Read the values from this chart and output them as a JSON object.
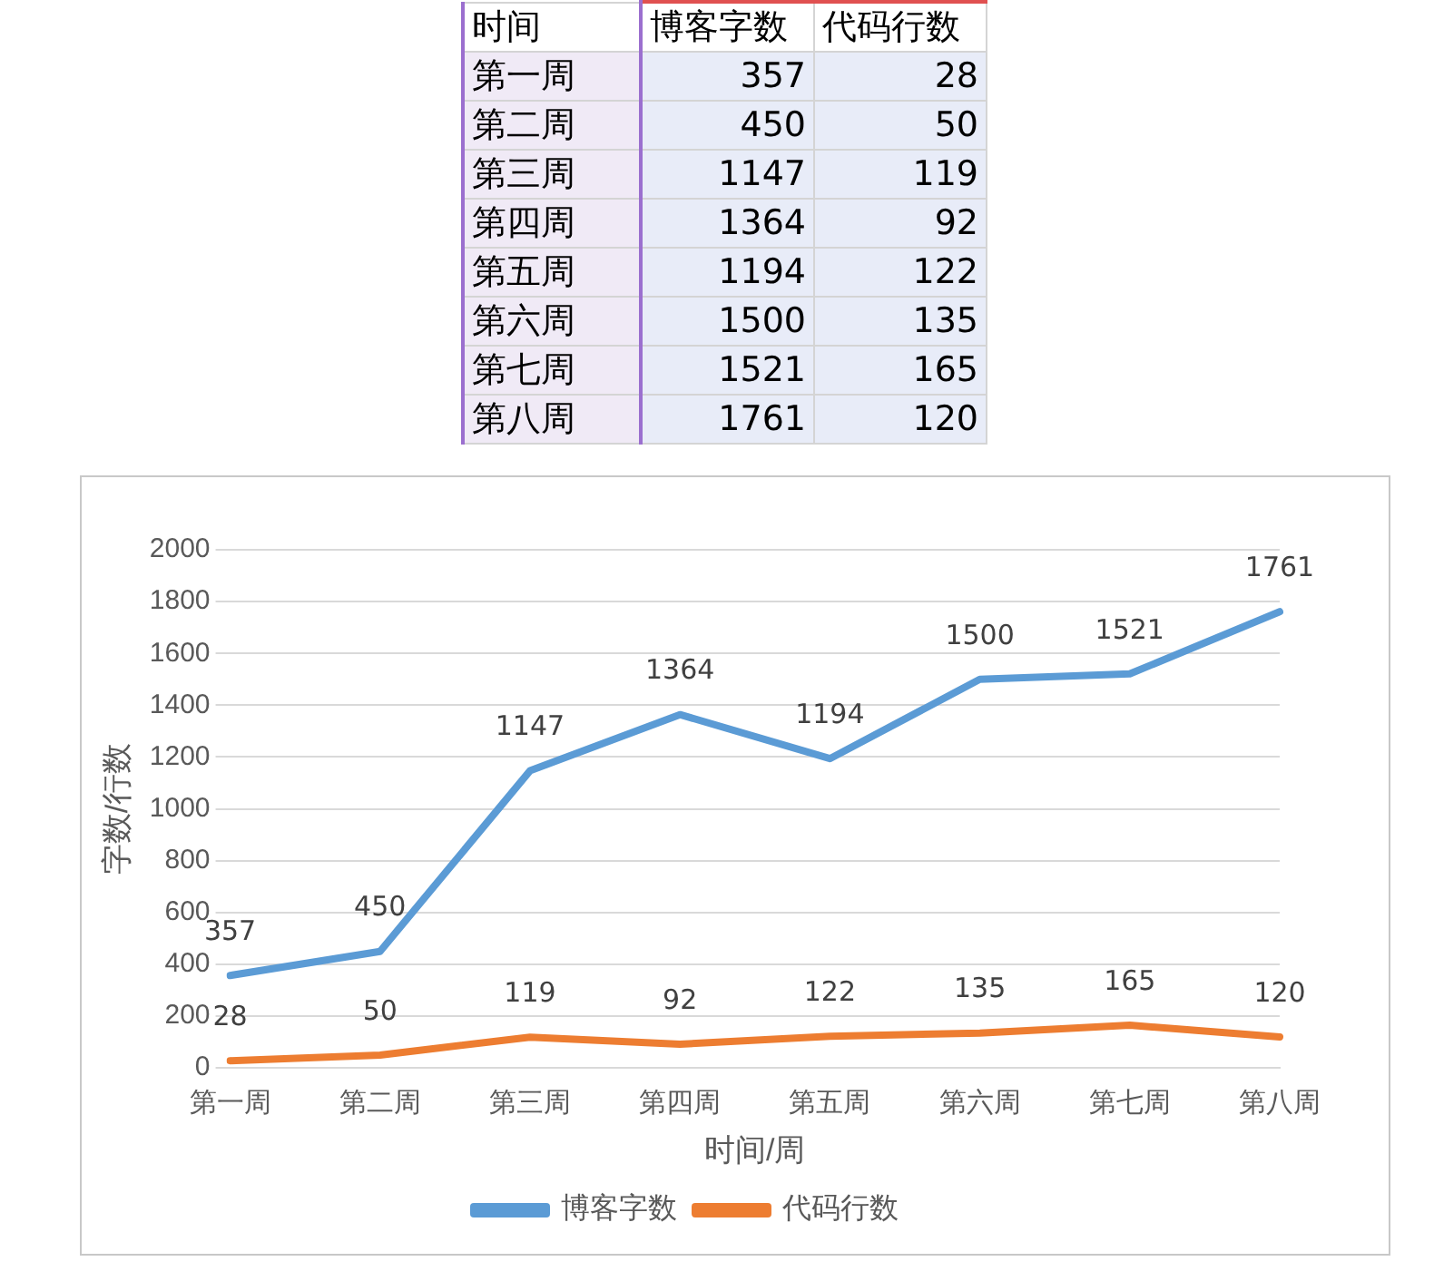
{
  "chart_data": [
    {
      "type": "other",
      "annotations": [
        "时间"
      ],
      "data_labels": true,
      "categories": [
        "第一周",
        "第二周",
        "第三周",
        "第四周",
        "第五周",
        "第六周",
        "第七周",
        "第八周"
      ],
      "series": [
        {
          "name": "博客字数",
          "values": [
            357,
            450,
            1147,
            1364,
            1194,
            1500,
            1521,
            1761
          ]
        },
        {
          "name": "代码行数",
          "values": [
            28,
            50,
            119,
            92,
            122,
            135,
            165,
            120
          ]
        }
      ]
    },
    {
      "type": "line",
      "xlabel": "时间/周",
      "ylabel": "字数/行数",
      "categories": [
        "第一周",
        "第二周",
        "第三周",
        "第四周",
        "第五周",
        "第六周",
        "第七周",
        "第八周"
      ],
      "series": [
        {
          "name": "博客字数",
          "color": "#5b9bd5",
          "values": [
            357,
            450,
            1147,
            1364,
            1194,
            1500,
            1521,
            1761
          ]
        },
        {
          "name": "代码行数",
          "color": "#ed7d31",
          "values": [
            28,
            50,
            119,
            92,
            122,
            135,
            165,
            120
          ]
        }
      ],
      "ylim": [
        0,
        2000
      ],
      "yticks": [
        0,
        200,
        400,
        600,
        800,
        1000,
        1200,
        1400,
        1600,
        1800,
        2000
      ],
      "grid": "y",
      "legend": "bottom",
      "data_labels": true,
      "marker": "none",
      "line_style": "solid"
    }
  ]
}
